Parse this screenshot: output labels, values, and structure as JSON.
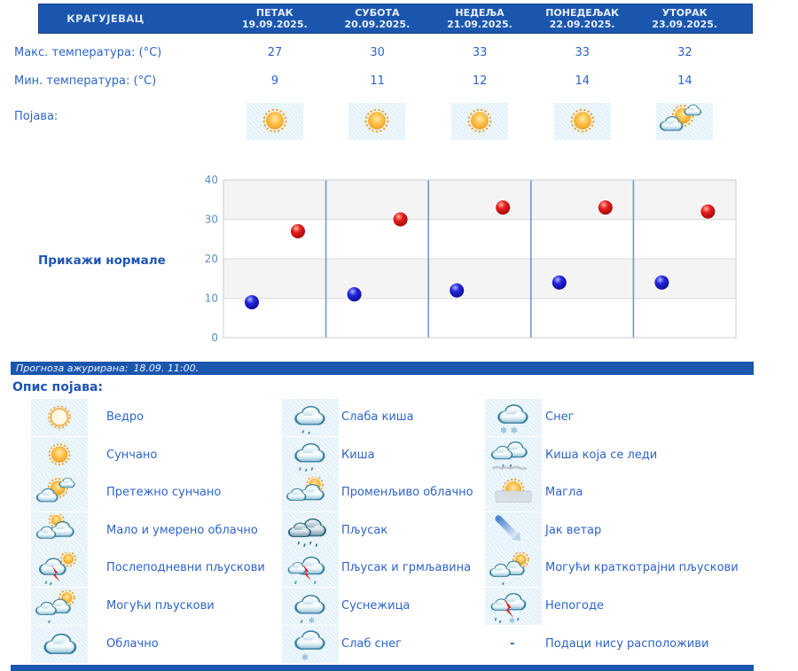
{
  "header": {
    "city": "КРАГУЈЕВАЦ",
    "days": [
      {
        "name": "ПЕТАК",
        "date": "19.09.2025."
      },
      {
        "name": "СУБОТА",
        "date": "20.09.2025."
      },
      {
        "name": "НЕДЕЉА",
        "date": "21.09.2025."
      },
      {
        "name": "ПОНЕДЕЉАК",
        "date": "22.09.2025."
      },
      {
        "name": "УТОРАК",
        "date": "23.09.2025."
      }
    ]
  },
  "table": {
    "max_label": "Макс. температура: (°C)",
    "min_label": "Мин. температура: (°C)",
    "phenomena_label": "Појава:"
  },
  "forecast": {
    "max": [
      27,
      30,
      33,
      33,
      32
    ],
    "min": [
      9,
      11,
      12,
      14,
      14
    ],
    "icons": [
      "sunny",
      "sunny",
      "sunny",
      "sunny",
      "mostly-sunny"
    ]
  },
  "normals_link": "Прикажи нормале",
  "chart_data": {
    "type": "scatter",
    "categories": [
      "ПЕТАК 19.09.",
      "СУБОТА 20.09.",
      "НЕДЕЉА 21.09.",
      "ПОНЕДЕЉАК 22.09.",
      "УТОРАК 23.09."
    ],
    "series": [
      {
        "name": "Макс. температура (°C)",
        "color": "#CC1111",
        "values": [
          27,
          30,
          33,
          33,
          32
        ]
      },
      {
        "name": "Мин. температура (°C)",
        "color": "#1515CC",
        "values": [
          9,
          11,
          12,
          14,
          14
        ]
      }
    ],
    "ylim": [
      0,
      40
    ],
    "yticks": [
      0,
      10,
      20,
      30,
      40
    ],
    "grid": true,
    "legend_position": "none",
    "title": "",
    "xlabel": "",
    "ylabel": ""
  },
  "updated": {
    "label": "Прогноза ажурирана:",
    "value": "18.09. 11:00."
  },
  "legend": {
    "title": "Опис појава:",
    "columns": [
      [
        {
          "icon": "clear",
          "label": "Ведро"
        },
        {
          "icon": "sunny",
          "label": "Сунчано"
        },
        {
          "icon": "mostly-sunny",
          "label": "Претежно сунчано"
        },
        {
          "icon": "partly-cloudy",
          "label": "Мало и умерено облачно"
        },
        {
          "icon": "afternoon-showers",
          "label": "Послеподневни пљускови"
        },
        {
          "icon": "possible-showers",
          "label": "Могући пљускови"
        },
        {
          "icon": "cloudy",
          "label": "Облачно"
        }
      ],
      [
        {
          "icon": "light-rain",
          "label": "Слаба киша"
        },
        {
          "icon": "rain",
          "label": "Киша"
        },
        {
          "icon": "variable-clouds",
          "label": "Променљиво облачно"
        },
        {
          "icon": "heavy-shower",
          "label": "Пљусак"
        },
        {
          "icon": "shower-thunder",
          "label": "Пљусак и грмљавина"
        },
        {
          "icon": "sleet",
          "label": "Суснежица"
        },
        {
          "icon": "light-snow",
          "label": "Слаб снег"
        }
      ],
      [
        {
          "icon": "snow",
          "label": "Снег"
        },
        {
          "icon": "freezing-rain",
          "label": "Киша која се леди"
        },
        {
          "icon": "fog",
          "label": "Магла"
        },
        {
          "icon": "strong-wind",
          "label": "Јак ветар"
        },
        {
          "icon": "possible-brief-showers",
          "label": "Могући краткотрајни пљускови"
        },
        {
          "icon": "storms",
          "label": "Непогоде"
        },
        {
          "icon": "no-data",
          "label": "Подаци нису расположиви",
          "dash": "-"
        }
      ]
    ]
  },
  "colors": {
    "header_bg": "#1B56AE",
    "text_blue": "#2E64C8",
    "link_blue": "#1E55B5",
    "max_point": "#CC1111",
    "min_point": "#1515CC",
    "day_separator": "#6D9BD1",
    "icon_box_bg": "#E3F1FA",
    "band_gray": "#F4F4F4"
  }
}
